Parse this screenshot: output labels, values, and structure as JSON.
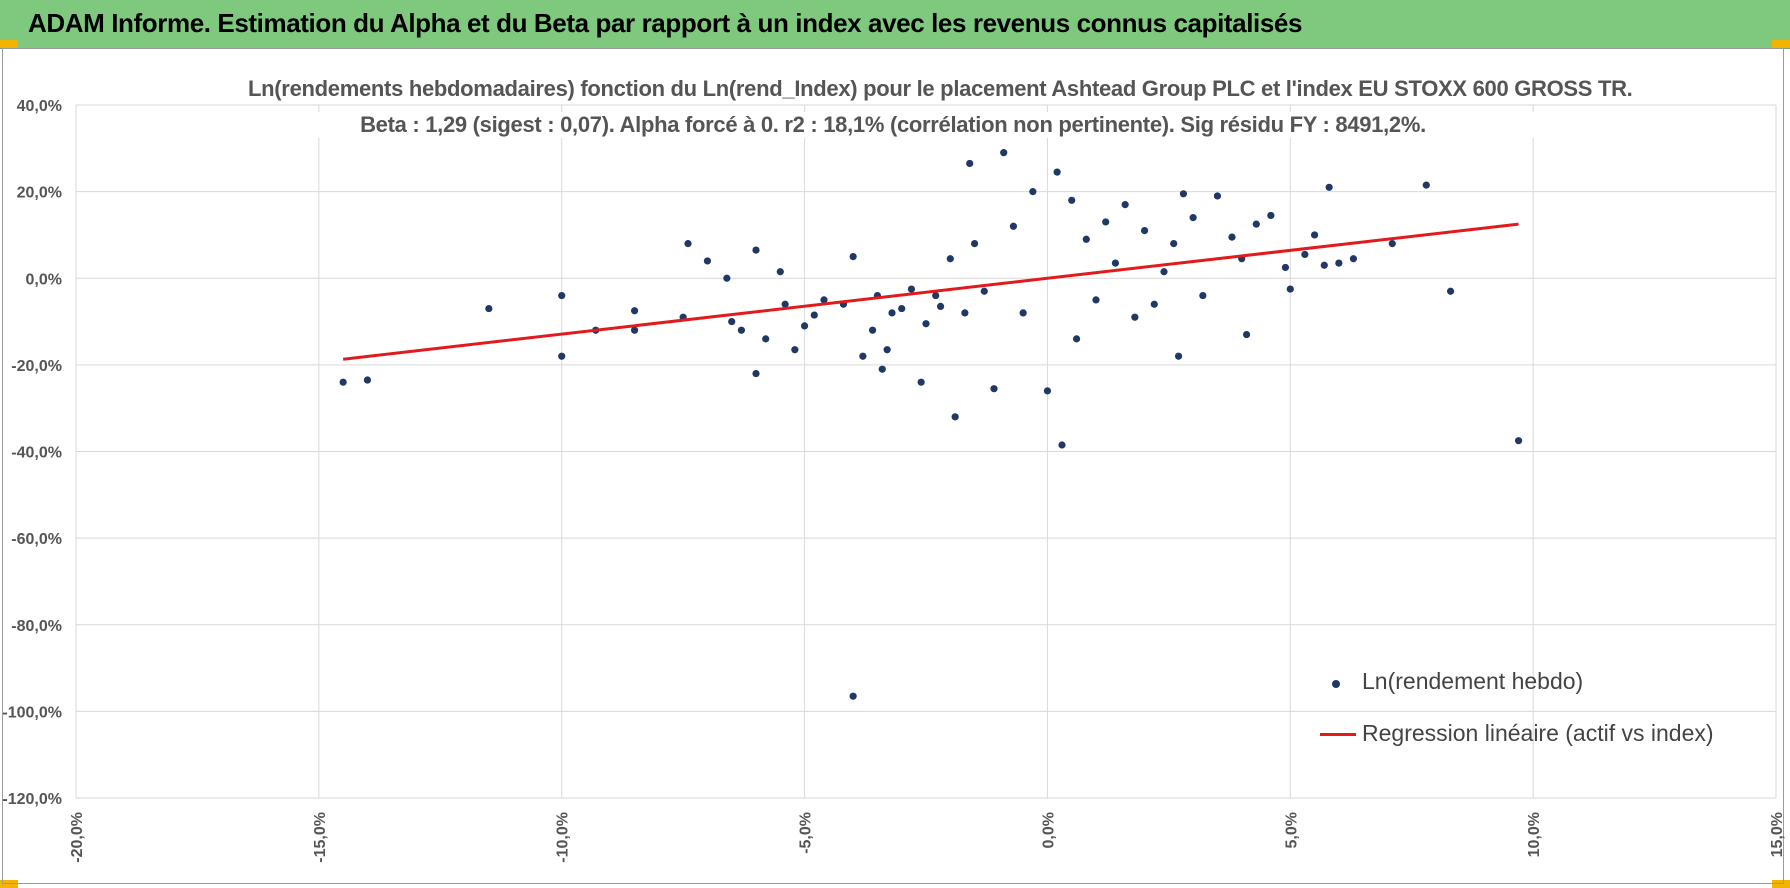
{
  "header": {
    "title": "ADAM Informe. Estimation du Alpha et du Beta par rapport à un index avec les revenus connus capitalisés"
  },
  "colors": {
    "banner": "#7fc97f",
    "points": "#1f3864",
    "regression": "#e31a1c",
    "grid": "#d9d9d9"
  },
  "chart_data": {
    "type": "scatter",
    "title": "Ln(rendements hebdomadaires) fonction du Ln(rend_Index) pour le placement Ashtead Group PLC et l'index EU STOXX 600 GROSS TR.",
    "subtitle": "Beta : 1,29 (sigest : 0,07).  Alpha forcé à 0. r2 : 18,1% (corrélation non pertinente). Sig résidu FY : 8491,2%.",
    "xlabel": "",
    "ylabel": "",
    "xlim": [
      -20,
      15
    ],
    "ylim": [
      -120,
      40
    ],
    "grid": true,
    "legend_position": "bottom-right",
    "x_ticks": [
      "-20,0%",
      "-15,0%",
      "-10,0%",
      "-5,0%",
      "0,0%",
      "5,0%",
      "10,0%",
      "15,0%"
    ],
    "y_ticks": [
      "40,0%",
      "20,0%",
      "0,0%",
      "-20,0%",
      "-40,0%",
      "-60,0%",
      "-80,0%",
      "-100,0%",
      "-120,0%"
    ],
    "series": [
      {
        "name": "Ln(rendement hebdo)",
        "type": "scatter",
        "points": [
          [
            -14.5,
            -24.0
          ],
          [
            -14.0,
            -23.5
          ],
          [
            -11.5,
            -7.0
          ],
          [
            -10.0,
            -4.0
          ],
          [
            -10.0,
            -18.0
          ],
          [
            -9.3,
            -12.0
          ],
          [
            -8.5,
            -7.5
          ],
          [
            -8.5,
            -12.0
          ],
          [
            -7.5,
            -9.0
          ],
          [
            -7.4,
            8.0
          ],
          [
            -7.0,
            4.0
          ],
          [
            -6.6,
            0.0
          ],
          [
            -6.5,
            -10.0
          ],
          [
            -6.3,
            -12.0
          ],
          [
            -6.0,
            6.5
          ],
          [
            -6.0,
            -22.0
          ],
          [
            -5.8,
            -14.0
          ],
          [
            -5.5,
            1.5
          ],
          [
            -5.4,
            -6.0
          ],
          [
            -5.2,
            -16.5
          ],
          [
            -5.0,
            -11.0
          ],
          [
            -4.8,
            -8.5
          ],
          [
            -4.6,
            -5.0
          ],
          [
            -4.2,
            -6.0
          ],
          [
            -4.0,
            5.0
          ],
          [
            -3.8,
            -18.0
          ],
          [
            -3.6,
            -12.0
          ],
          [
            -3.5,
            -4.0
          ],
          [
            -3.4,
            -21.0
          ],
          [
            -3.3,
            -16.5
          ],
          [
            -3.2,
            -8.0
          ],
          [
            -3.0,
            -7.0
          ],
          [
            -2.8,
            -2.5
          ],
          [
            -2.6,
            -24.0
          ],
          [
            -2.5,
            -10.5
          ],
          [
            -2.3,
            -4.0
          ],
          [
            -2.2,
            -6.5
          ],
          [
            -2.0,
            4.5
          ],
          [
            -1.9,
            -32.0
          ],
          [
            -1.7,
            -8.0
          ],
          [
            -1.6,
            26.5
          ],
          [
            -1.5,
            8.0
          ],
          [
            -1.3,
            -3.0
          ],
          [
            -1.1,
            -25.5
          ],
          [
            -0.9,
            29.0
          ],
          [
            -0.7,
            12.0
          ],
          [
            -0.5,
            -8.0
          ],
          [
            -0.3,
            20.0
          ],
          [
            0.0,
            -26.0
          ],
          [
            0.2,
            24.5
          ],
          [
            0.3,
            -38.5
          ],
          [
            0.5,
            18.0
          ],
          [
            0.6,
            -14.0
          ],
          [
            0.8,
            9.0
          ],
          [
            1.0,
            -5.0
          ],
          [
            1.2,
            13.0
          ],
          [
            1.4,
            3.5
          ],
          [
            1.6,
            17.0
          ],
          [
            1.8,
            -9.0
          ],
          [
            2.0,
            11.0
          ],
          [
            2.2,
            -6.0
          ],
          [
            2.4,
            1.5
          ],
          [
            2.6,
            8.0
          ],
          [
            2.7,
            -18.0
          ],
          [
            2.8,
            19.5
          ],
          [
            3.0,
            14.0
          ],
          [
            3.2,
            -4.0
          ],
          [
            3.5,
            19.0
          ],
          [
            3.8,
            9.5
          ],
          [
            4.0,
            4.5
          ],
          [
            4.1,
            -13.0
          ],
          [
            4.3,
            12.5
          ],
          [
            4.6,
            14.5
          ],
          [
            4.9,
            2.5
          ],
          [
            5.0,
            -2.5
          ],
          [
            5.3,
            5.5
          ],
          [
            5.5,
            10.0
          ],
          [
            5.7,
            3.0
          ],
          [
            5.8,
            21.0
          ],
          [
            6.0,
            3.5
          ],
          [
            6.3,
            4.5
          ],
          [
            7.1,
            8.0
          ],
          [
            7.8,
            21.5
          ],
          [
            8.3,
            -3.0
          ],
          [
            9.7,
            -37.5
          ],
          [
            -4.0,
            -96.5
          ]
        ]
      },
      {
        "name": "Regression linéaire (actif vs index)",
        "type": "line",
        "points": [
          [
            -14.5,
            -18.7
          ],
          [
            9.7,
            12.5
          ]
        ]
      }
    ]
  }
}
